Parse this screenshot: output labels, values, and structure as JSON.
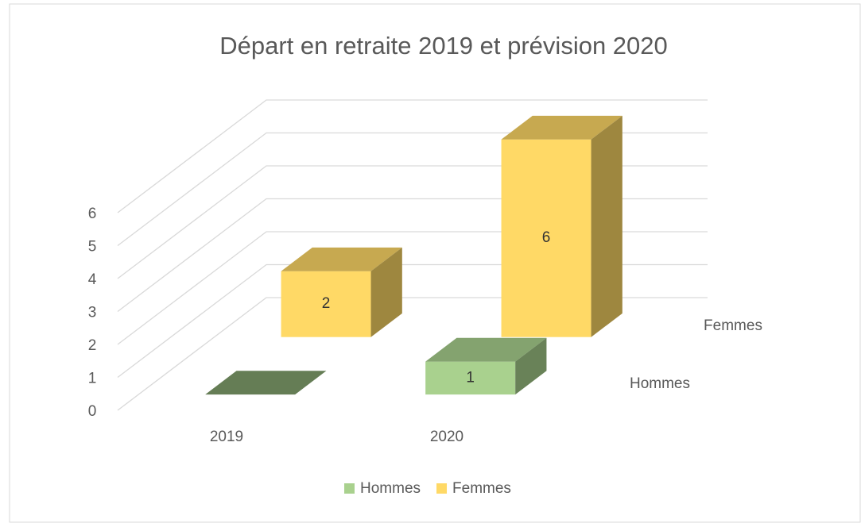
{
  "chart_data": {
    "type": "bar3d",
    "title": "Départ en retraite 2019 et prévision 2020",
    "categories": [
      "2019",
      "2020"
    ],
    "series": [
      {
        "name": "Hommes",
        "color": "#a9d18e",
        "values": [
          0,
          1
        ]
      },
      {
        "name": "Femmes",
        "color": "#ffd966",
        "values": [
          2,
          6
        ]
      }
    ],
    "ylim": [
      0,
      6
    ],
    "yticks": [
      0,
      1,
      2,
      3,
      4,
      5,
      6
    ],
    "grid": true,
    "legend": "bottom"
  }
}
